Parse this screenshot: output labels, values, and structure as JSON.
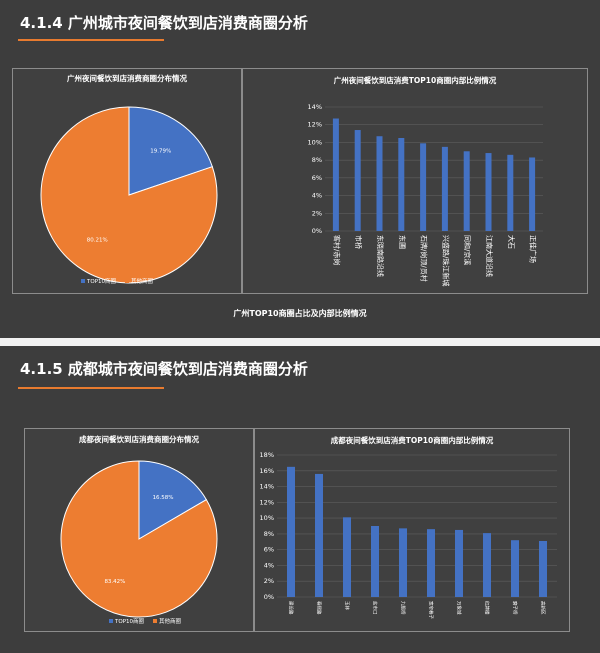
{
  "sections": [
    {
      "title": "4.1.4 广州城市夜间餐饮到店消费商圈分析",
      "caption": "广州TOP10商圈占比及内部比例情况",
      "pie": {
        "type": "pie",
        "title": "广州夜间餐饮到店消费商圈分布情况",
        "slices": [
          {
            "name": "TOP10商圈",
            "value": 19.79,
            "label": "19.79%"
          },
          {
            "name": "其他商圈",
            "value": 80.21,
            "label": "80.21%"
          }
        ],
        "colors": [
          "#4472c4",
          "#ed7d31"
        ]
      },
      "bar": {
        "type": "bar",
        "title": "广州夜间餐饮到店消费TOP10商圈内部比例情况",
        "categories": [
          "客村/赤岗",
          "市桥",
          "东晓南路沿线",
          "东圃",
          "石牌/岗顶/员村",
          "兴盛路/珠江新城",
          "同和/京溪",
          "江南大道沿线",
          "大石",
          "正佳广场"
        ],
        "values": [
          12.7,
          11.4,
          10.7,
          10.5,
          9.9,
          9.5,
          9.0,
          8.8,
          8.6,
          8.3
        ],
        "yticks": [
          "0%",
          "2%",
          "4%",
          "6%",
          "8%",
          "10%",
          "12%",
          "14%"
        ],
        "ylim": [
          0,
          14
        ],
        "color": "#4472c4"
      }
    },
    {
      "title": "4.1.5 成都城市夜间餐饮到店消费商圈分析",
      "pie": {
        "type": "pie",
        "title": "成都夜间餐饮到店消费商圈分布情况",
        "slices": [
          {
            "name": "TOP10商圈",
            "value": 16.58,
            "label": "16.58%"
          },
          {
            "name": "其他商圈",
            "value": 83.42,
            "label": "83.42%"
          }
        ],
        "colors": [
          "#4472c4",
          "#ed7d31"
        ]
      },
      "bar": {
        "type": "bar",
        "title": "成都夜间餐饮到店消费TOP10商圈内部比例情况",
        "categories": [
          "建设路",
          "春熙路",
          "玉林",
          "盐市口",
          "九眼桥",
          "宽窄巷子",
          "万象城",
          "红牌楼",
          "磨子桥",
          "高新区"
        ],
        "values": [
          16.5,
          15.6,
          10.1,
          9.0,
          8.7,
          8.6,
          8.5,
          8.1,
          7.2,
          7.1
        ],
        "yticks": [
          "0%",
          "2%",
          "4%",
          "6%",
          "8%",
          "10%",
          "12%",
          "14%",
          "16%",
          "18%"
        ],
        "ylim": [
          0,
          18
        ],
        "color": "#4472c4"
      }
    }
  ]
}
